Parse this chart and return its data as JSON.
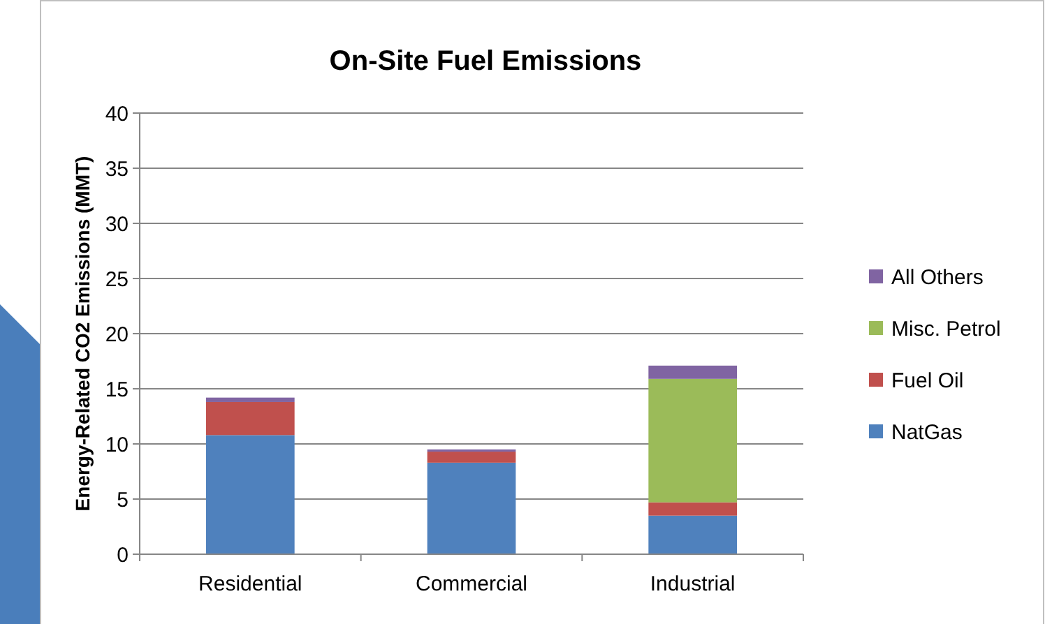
{
  "chart_data": {
    "type": "bar",
    "title": "On-Site Fuel Emissions",
    "ylabel": "Energy-Related CO2 Emissions (MMT)",
    "categories": [
      "Residential",
      "Commercial",
      "Industrial"
    ],
    "stacked": true,
    "series": [
      {
        "name": "NatGas",
        "color": "#4f81bd",
        "values": [
          10.8,
          8.3,
          3.5
        ]
      },
      {
        "name": "Fuel Oil",
        "color": "#c0504d",
        "values": [
          3.0,
          1.0,
          1.2
        ]
      },
      {
        "name": "Misc. Petrol",
        "color": "#9bbb59",
        "values": [
          0,
          0,
          11.2
        ]
      },
      {
        "name": "All Others",
        "color": "#8064a2",
        "values": [
          0.4,
          0.2,
          1.2
        ]
      }
    ],
    "ylim": [
      0,
      40
    ],
    "yticks": [
      0,
      5,
      10,
      15,
      20,
      25,
      30,
      35,
      40
    ],
    "grid": "y",
    "legend": "right"
  }
}
